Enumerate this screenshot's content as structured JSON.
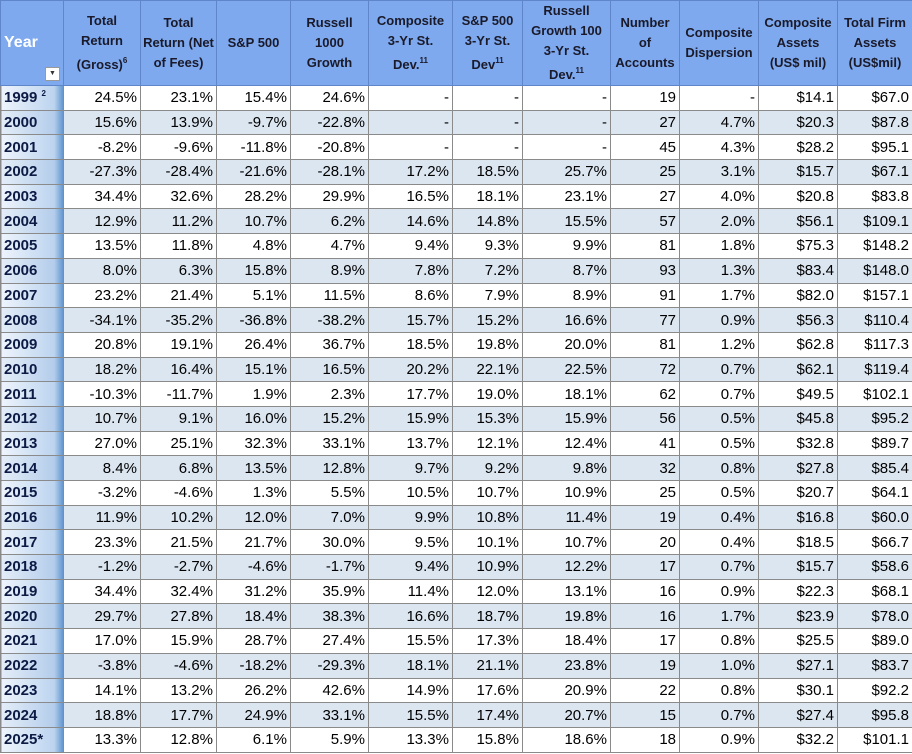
{
  "table": {
    "headers": [
      {
        "text": "Year"
      },
      {
        "text": "Total Return (Gross)",
        "sup": "6"
      },
      {
        "text": "Total Return (Net of Fees)"
      },
      {
        "text": "S&P 500"
      },
      {
        "text": "Russell 1000 Growth"
      },
      {
        "text": "Composite 3-Yr St. Dev.",
        "sup": "11"
      },
      {
        "text": "S&P 500 3-Yr St. Dev",
        "sup": "11"
      },
      {
        "text": "Russell Growth 100 3-Yr St. Dev.",
        "sup": "11"
      },
      {
        "text": "Number of Accounts"
      },
      {
        "text": "Composite Dispersion"
      },
      {
        "text": "Composite Assets (US$ mil)"
      },
      {
        "text": "Total Firm Assets (US$mil)"
      }
    ],
    "rows": [
      {
        "year": "1999",
        "sup": "2",
        "cells": [
          "24.5%",
          "23.1%",
          "15.4%",
          "24.6%",
          "-",
          "-",
          "-",
          "19",
          "-",
          "$14.1",
          "$67.0"
        ]
      },
      {
        "year": "2000",
        "cells": [
          "15.6%",
          "13.9%",
          "-9.7%",
          "-22.8%",
          "-",
          "-",
          "-",
          "27",
          "4.7%",
          "$20.3",
          "$87.8"
        ]
      },
      {
        "year": "2001",
        "cells": [
          "-8.2%",
          "-9.6%",
          "-11.8%",
          "-20.8%",
          "-",
          "-",
          "-",
          "45",
          "4.3%",
          "$28.2",
          "$95.1"
        ]
      },
      {
        "year": "2002",
        "cells": [
          "-27.3%",
          "-28.4%",
          "-21.6%",
          "-28.1%",
          "17.2%",
          "18.5%",
          "25.7%",
          "25",
          "3.1%",
          "$15.7",
          "$67.1"
        ]
      },
      {
        "year": "2003",
        "cells": [
          "34.4%",
          "32.6%",
          "28.2%",
          "29.9%",
          "16.5%",
          "18.1%",
          "23.1%",
          "27",
          "4.0%",
          "$20.8",
          "$83.8"
        ]
      },
      {
        "year": "2004",
        "cells": [
          "12.9%",
          "11.2%",
          "10.7%",
          "6.2%",
          "14.6%",
          "14.8%",
          "15.5%",
          "57",
          "2.0%",
          "$56.1",
          "$109.1"
        ]
      },
      {
        "year": "2005",
        "cells": [
          "13.5%",
          "11.8%",
          "4.8%",
          "4.7%",
          "9.4%",
          "9.3%",
          "9.9%",
          "81",
          "1.8%",
          "$75.3",
          "$148.2"
        ]
      },
      {
        "year": "2006",
        "cells": [
          "8.0%",
          "6.3%",
          "15.8%",
          "8.9%",
          "7.8%",
          "7.2%",
          "8.7%",
          "93",
          "1.3%",
          "$83.4",
          "$148.0"
        ]
      },
      {
        "year": "2007",
        "cells": [
          "23.2%",
          "21.4%",
          "5.1%",
          "11.5%",
          "8.6%",
          "7.9%",
          "8.9%",
          "91",
          "1.7%",
          "$82.0",
          "$157.1"
        ]
      },
      {
        "year": "2008",
        "cells": [
          "-34.1%",
          "-35.2%",
          "-36.8%",
          "-38.2%",
          "15.7%",
          "15.2%",
          "16.6%",
          "77",
          "0.9%",
          "$56.3",
          "$110.4"
        ]
      },
      {
        "year": "2009",
        "cells": [
          "20.8%",
          "19.1%",
          "26.4%",
          "36.7%",
          "18.5%",
          "19.8%",
          "20.0%",
          "81",
          "1.2%",
          "$62.8",
          "$117.3"
        ]
      },
      {
        "year": "2010",
        "cells": [
          "18.2%",
          "16.4%",
          "15.1%",
          "16.5%",
          "20.2%",
          "22.1%",
          "22.5%",
          "72",
          "0.7%",
          "$62.1",
          "$119.4"
        ]
      },
      {
        "year": "2011",
        "cells": [
          "-10.3%",
          "-11.7%",
          "1.9%",
          "2.3%",
          "17.7%",
          "19.0%",
          "18.1%",
          "62",
          "0.7%",
          "$49.5",
          "$102.1"
        ]
      },
      {
        "year": "2012",
        "cells": [
          "10.7%",
          "9.1%",
          "16.0%",
          "15.2%",
          "15.9%",
          "15.3%",
          "15.9%",
          "56",
          "0.5%",
          "$45.8",
          "$95.2"
        ]
      },
      {
        "year": "2013",
        "cells": [
          "27.0%",
          "25.1%",
          "32.3%",
          "33.1%",
          "13.7%",
          "12.1%",
          "12.4%",
          "41",
          "0.5%",
          "$32.8",
          "$89.7"
        ]
      },
      {
        "year": "2014",
        "cells": [
          "8.4%",
          "6.8%",
          "13.5%",
          "12.8%",
          "9.7%",
          "9.2%",
          "9.8%",
          "32",
          "0.8%",
          "$27.8",
          "$85.4"
        ]
      },
      {
        "year": "2015",
        "cells": [
          "-3.2%",
          "-4.6%",
          "1.3%",
          "5.5%",
          "10.5%",
          "10.7%",
          "10.9%",
          "25",
          "0.5%",
          "$20.7",
          "$64.1"
        ]
      },
      {
        "year": "2016",
        "cells": [
          "11.9%",
          "10.2%",
          "12.0%",
          "7.0%",
          "9.9%",
          "10.8%",
          "11.4%",
          "19",
          "0.4%",
          "$16.8",
          "$60.0"
        ]
      },
      {
        "year": "2017",
        "cells": [
          "23.3%",
          "21.5%",
          "21.7%",
          "30.0%",
          "9.5%",
          "10.1%",
          "10.7%",
          "20",
          "0.4%",
          "$18.5",
          "$66.7"
        ]
      },
      {
        "year": "2018",
        "cells": [
          "-1.2%",
          "-2.7%",
          "-4.6%",
          "-1.7%",
          "9.4%",
          "10.9%",
          "12.2%",
          "17",
          "0.7%",
          "$15.7",
          "$58.6"
        ]
      },
      {
        "year": "2019",
        "cells": [
          "34.4%",
          "32.4%",
          "31.2%",
          "35.9%",
          "11.4%",
          "12.0%",
          "13.1%",
          "16",
          "0.9%",
          "$22.3",
          "$68.1"
        ]
      },
      {
        "year": "2020",
        "cells": [
          "29.7%",
          "27.8%",
          "18.4%",
          "38.3%",
          "16.6%",
          "18.7%",
          "19.8%",
          "16",
          "1.7%",
          "$23.9",
          "$78.0"
        ]
      },
      {
        "year": "2021",
        "cells": [
          "17.0%",
          "15.9%",
          "28.7%",
          "27.4%",
          "15.5%",
          "17.3%",
          "18.4%",
          "17",
          "0.8%",
          "$25.5",
          "$89.0"
        ]
      },
      {
        "year": "2022",
        "cells": [
          "-3.8%",
          "-4.6%",
          "-18.2%",
          "-29.3%",
          "18.1%",
          "21.1%",
          "23.8%",
          "19",
          "1.0%",
          "$27.1",
          "$83.7"
        ]
      },
      {
        "year": "2023",
        "cells": [
          "14.1%",
          "13.2%",
          "26.2%",
          "42.6%",
          "14.9%",
          "17.6%",
          "20.9%",
          "22",
          "0.8%",
          "$30.1",
          "$92.2"
        ]
      },
      {
        "year": "2024",
        "cells": [
          "18.8%",
          "17.7%",
          "24.9%",
          "33.1%",
          "15.5%",
          "17.4%",
          "20.7%",
          "15",
          "0.7%",
          "$27.4",
          "$95.8"
        ]
      },
      {
        "year": "2025*",
        "cells": [
          "13.3%",
          "12.8%",
          "6.1%",
          "5.9%",
          "13.3%",
          "15.8%",
          "18.6%",
          "18",
          "0.9%",
          "$32.2",
          "$101.1"
        ]
      }
    ]
  }
}
